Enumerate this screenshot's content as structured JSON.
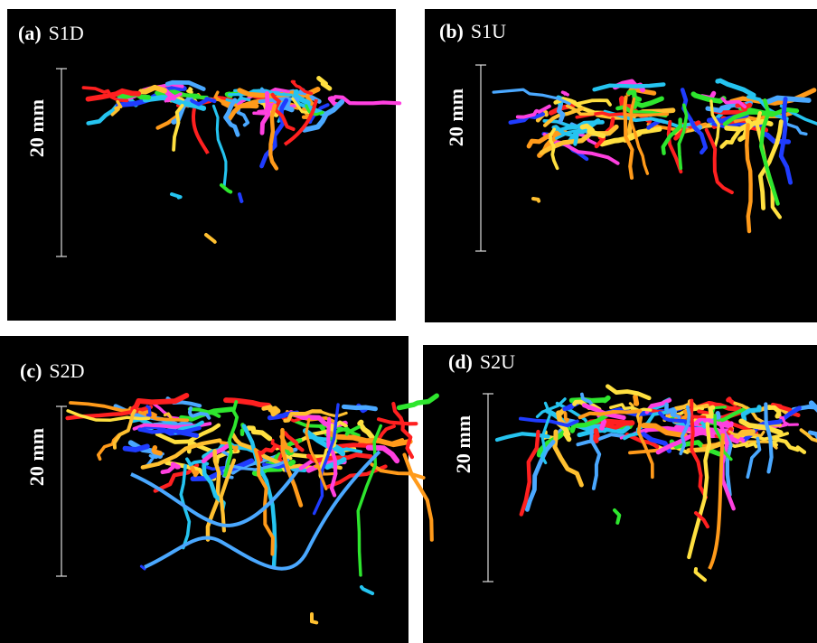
{
  "panels": [
    {
      "label": "(a)",
      "name": "S1D",
      "scale": "20 mm"
    },
    {
      "label": "(b)",
      "name": "S1U",
      "scale": "20 mm"
    },
    {
      "label": "(c)",
      "name": "S2D",
      "scale": "20 mm"
    },
    {
      "label": "(d)",
      "name": "S2U",
      "scale": "20 mm"
    }
  ]
}
